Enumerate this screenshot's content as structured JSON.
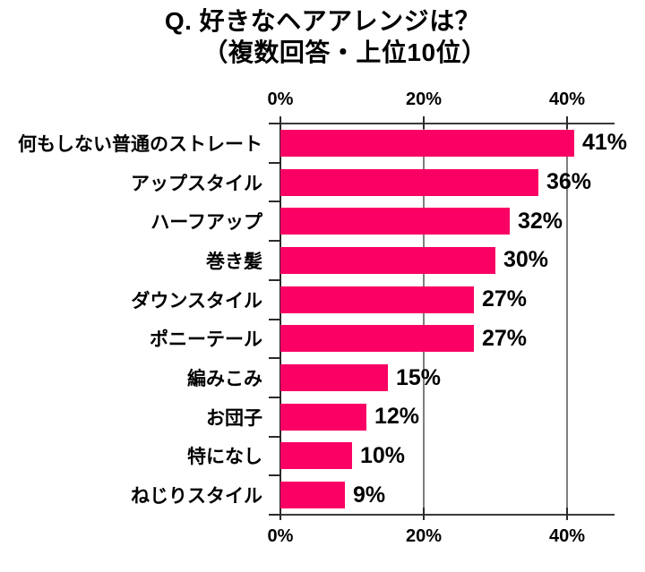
{
  "chart_data": {
    "type": "bar",
    "orientation": "horizontal",
    "title": "Q. 好きなヘアアレンジは？",
    "subtitle": "（複数回答・上位10位）",
    "categories": [
      "何もしない普通のストレート",
      "アップスタイル",
      "ハーフアップ",
      "巻き髪",
      "ダウンスタイル",
      "ポニーテール",
      "編みこみ",
      "お団子",
      "特になし",
      "ねじりスタイル"
    ],
    "values": [
      41,
      36,
      32,
      30,
      27,
      27,
      15,
      12,
      10,
      9
    ],
    "value_labels": [
      "41%",
      "36%",
      "32%",
      "30%",
      "27%",
      "27%",
      "15%",
      "12%",
      "10%",
      "9%"
    ],
    "x_axis": {
      "tick_labels": [
        "0%",
        "20%",
        "40%"
      ],
      "tick_values": [
        0,
        20,
        40
      ],
      "range": [
        0,
        45
      ],
      "gridlines_at": [
        20,
        40
      ],
      "position": "top-and-bottom"
    },
    "legend": "none",
    "grid": "vertical-only",
    "colors": {
      "bar": "#FA0064",
      "gridline": "#7F7F7F",
      "axis": "#3B3B3B",
      "text": "#000000",
      "background": "#FFFFFF"
    }
  }
}
